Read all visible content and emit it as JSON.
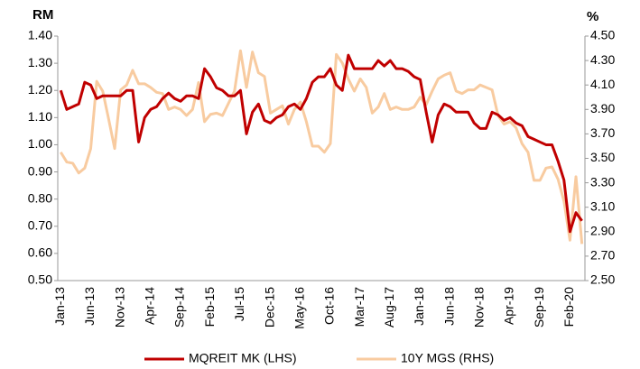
{
  "chart_data": {
    "type": "line",
    "y_label": "RM",
    "y2_label": "%",
    "categories": [
      "Jan-13",
      null,
      null,
      null,
      null,
      "Jun-13",
      null,
      null,
      null,
      null,
      "Nov-13",
      null,
      null,
      null,
      null,
      "Apr-14",
      null,
      null,
      null,
      null,
      "Sep-14",
      null,
      null,
      null,
      null,
      "Feb-15",
      null,
      null,
      null,
      null,
      "Jul-15",
      null,
      null,
      null,
      null,
      "Dec-15",
      null,
      null,
      null,
      null,
      "May-16",
      null,
      null,
      null,
      null,
      "Oct-16",
      null,
      null,
      null,
      null,
      "Mar-17",
      null,
      null,
      null,
      null,
      "Aug-17",
      null,
      null,
      null,
      null,
      "Jan-18",
      null,
      null,
      null,
      null,
      "Jun-18",
      null,
      null,
      null,
      null,
      "Nov-18",
      null,
      null,
      null,
      null,
      "Apr-19",
      null,
      null,
      null,
      null,
      "Sep-19",
      null,
      null,
      null,
      null,
      "Feb-20",
      null,
      null
    ],
    "series": [
      {
        "name": "MQREIT MK (LHS)",
        "color": "#c00000",
        "values": [
          1.2,
          1.13,
          1.14,
          1.15,
          1.23,
          1.22,
          1.17,
          1.18,
          1.18,
          1.18,
          1.18,
          1.2,
          1.2,
          1.01,
          1.1,
          1.13,
          1.14,
          1.17,
          1.19,
          1.17,
          1.16,
          1.18,
          1.18,
          1.17,
          1.28,
          1.25,
          1.21,
          1.2,
          1.18,
          1.18,
          1.2,
          1.04,
          1.12,
          1.15,
          1.09,
          1.08,
          1.1,
          1.11,
          1.14,
          1.15,
          1.13,
          1.17,
          1.23,
          1.25,
          1.25,
          1.28,
          1.22,
          1.2,
          1.33,
          1.28,
          1.28,
          1.28,
          1.28,
          1.31,
          1.29,
          1.31,
          1.28,
          1.28,
          1.27,
          1.25,
          1.24,
          1.12,
          1.01,
          1.11,
          1.15,
          1.14,
          1.12,
          1.12,
          1.12,
          1.08,
          1.06,
          1.06,
          1.12,
          1.11,
          1.09,
          1.1,
          1.08,
          1.07,
          1.03,
          1.02,
          1.01,
          1.0,
          1.0,
          0.94,
          0.87,
          0.68,
          0.75,
          0.72
        ]
      },
      {
        "name": "10Y MGS (RHS)",
        "color": "#f8cba0",
        "axis": "y2",
        "values": [
          3.55,
          3.47,
          3.46,
          3.38,
          3.42,
          3.58,
          4.13,
          4.05,
          3.82,
          3.58,
          4.06,
          4.1,
          4.22,
          4.11,
          4.11,
          4.08,
          4.04,
          4.03,
          3.9,
          3.92,
          3.9,
          3.85,
          3.9,
          4.12,
          3.8,
          3.86,
          3.87,
          3.85,
          3.95,
          4.05,
          4.38,
          4.08,
          4.37,
          4.2,
          4.17,
          3.87,
          3.9,
          3.93,
          3.78,
          3.9,
          3.96,
          3.8,
          3.6,
          3.6,
          3.55,
          3.62,
          4.35,
          4.28,
          4.15,
          4.05,
          4.15,
          4.08,
          3.87,
          3.92,
          4.03,
          3.9,
          3.92,
          3.9,
          3.9,
          3.92,
          4.0,
          3.94,
          4.05,
          4.15,
          4.18,
          4.2,
          4.05,
          4.03,
          4.06,
          4.06,
          4.1,
          4.08,
          4.06,
          3.85,
          3.78,
          3.8,
          3.75,
          3.62,
          3.55,
          3.32,
          3.32,
          3.42,
          3.43,
          3.33,
          3.15,
          2.83,
          3.35,
          2.8
        ]
      }
    ],
    "ylim": [
      0.5,
      1.4
    ],
    "yticks": [
      {
        "value": 0.5,
        "label": "0.50"
      },
      {
        "value": 0.6,
        "label": "0.60"
      },
      {
        "value": 0.7,
        "label": "0.70"
      },
      {
        "value": 0.8,
        "label": "0.80"
      },
      {
        "value": 0.9,
        "label": "0.90"
      },
      {
        "value": 1.0,
        "label": "1.00"
      },
      {
        "value": 1.1,
        "label": "1.10"
      },
      {
        "value": 1.2,
        "label": "1.20"
      },
      {
        "value": 1.3,
        "label": "1.30"
      },
      {
        "value": 1.4,
        "label": "1.40"
      }
    ],
    "y2lim": [
      2.5,
      4.5
    ],
    "y2ticks": [
      {
        "value": 2.5,
        "label": "2.50"
      },
      {
        "value": 2.7,
        "label": "2.70"
      },
      {
        "value": 2.9,
        "label": "2.90"
      },
      {
        "value": 3.1,
        "label": "3.10"
      },
      {
        "value": 3.3,
        "label": "3.30"
      },
      {
        "value": 3.5,
        "label": "3.50"
      },
      {
        "value": 3.7,
        "label": "3.70"
      },
      {
        "value": 3.9,
        "label": "3.90"
      },
      {
        "value": 4.1,
        "label": "4.10"
      },
      {
        "value": 4.3,
        "label": "4.30"
      },
      {
        "value": 4.5,
        "label": "4.50"
      }
    ],
    "grid": false,
    "legend": "bottom"
  }
}
